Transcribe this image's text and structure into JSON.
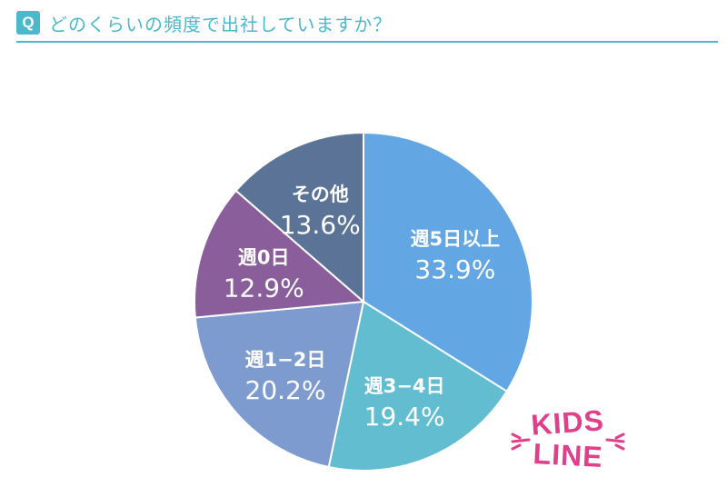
{
  "header": {
    "badge": "Q",
    "question": "どのくらいの頻度で出社していますか？"
  },
  "chart_data": {
    "type": "pie",
    "start_angle_deg": 0,
    "direction": "clockwise",
    "slices": [
      {
        "label": "週5日以上",
        "value": 33.9,
        "value_label": "33.9%",
        "color": "#62a6e3"
      },
      {
        "label": "週3−4日",
        "value": 19.4,
        "value_label": "19.4%",
        "color": "#62bdd0"
      },
      {
        "label": "週1−2日",
        "value": 20.2,
        "value_label": "20.2%",
        "color": "#7e9bd0"
      },
      {
        "label": "週0日",
        "value": 12.9,
        "value_label": "12.9%",
        "color": "#8a5e9b"
      },
      {
        "label": "その他",
        "value": 13.6,
        "value_label": "13.6%",
        "color": "#5a7396"
      }
    ]
  },
  "logo": {
    "line1": "KIDS",
    "line2": "LINE",
    "color": "#e0408a"
  }
}
